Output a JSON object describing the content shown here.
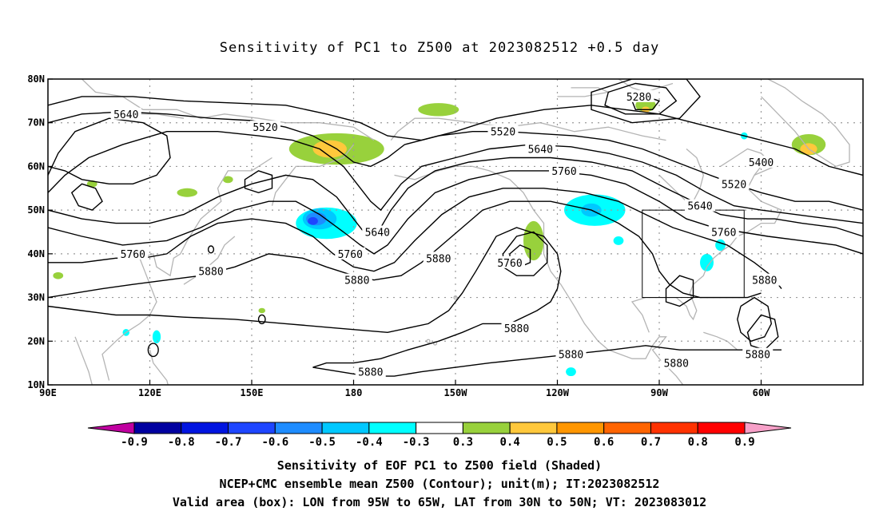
{
  "title": "Sensitivity of PC1 to Z500 at 2023082512 +0.5 day",
  "map": {
    "lat_labels": [
      "80N",
      "70N",
      "60N",
      "50N",
      "40N",
      "30N",
      "20N",
      "10N"
    ],
    "lon_labels": [
      "90E",
      "120E",
      "150E",
      "180",
      "150W",
      "120W",
      "90W",
      "60W"
    ],
    "valid_box": {
      "lon_from": -95,
      "lon_to": -65,
      "lat_from": 30,
      "lat_to": 50
    }
  },
  "contours": {
    "labels": [
      {
        "text": "5640",
        "lon": 113,
        "lat": 72
      },
      {
        "text": "5520",
        "lon": 154,
        "lat": 69
      },
      {
        "text": "5520",
        "lon": 224,
        "lat": 68
      },
      {
        "text": "5280",
        "lon": 264,
        "lat": 76
      },
      {
        "text": "5640",
        "lon": 235,
        "lat": 64
      },
      {
        "text": "5760",
        "lon": 242,
        "lat": 59
      },
      {
        "text": "5400",
        "lon": 300,
        "lat": 61
      },
      {
        "text": "5520",
        "lon": 292,
        "lat": 56
      },
      {
        "text": "5640",
        "lon": 282,
        "lat": 51
      },
      {
        "text": "5760",
        "lon": 289,
        "lat": 45
      },
      {
        "text": "5880",
        "lon": 301,
        "lat": 34
      },
      {
        "text": "5640",
        "lon": 187,
        "lat": 45
      },
      {
        "text": "5760",
        "lon": 179,
        "lat": 40
      },
      {
        "text": "5880",
        "lon": 181,
        "lat": 34
      },
      {
        "text": "5880",
        "lon": 205,
        "lat": 39
      },
      {
        "text": "5760",
        "lon": 226,
        "lat": 38
      },
      {
        "text": "5760",
        "lon": 115,
        "lat": 40
      },
      {
        "text": "5880",
        "lon": 138,
        "lat": 36
      },
      {
        "text": "5880",
        "lon": 228,
        "lat": 23
      },
      {
        "text": "5880",
        "lon": 244,
        "lat": 17
      },
      {
        "text": "5880",
        "lon": 275,
        "lat": 15
      },
      {
        "text": "5880",
        "lon": 299,
        "lat": 17
      },
      {
        "text": "5880",
        "lon": 185,
        "lat": 13
      }
    ],
    "color": "#000000"
  },
  "colorbar": {
    "labels": [
      "-0.9",
      "-0.8",
      "-0.7",
      "-0.6",
      "-0.5",
      "-0.4",
      "-0.3",
      "0.3",
      "0.4",
      "0.5",
      "0.6",
      "0.7",
      "0.8",
      "0.9"
    ],
    "low_arrow_color": "#c000a0",
    "high_arrow_color": "#f7a0c8",
    "colors": [
      "#0000a0",
      "#0014e0",
      "#1e46ff",
      "#1e8cff",
      "#00c8ff",
      "#00ffff",
      "#ffffff",
      "#98d13c",
      "#ffc83c",
      "#ff9600",
      "#ff6400",
      "#ff3200",
      "#ff0000"
    ]
  },
  "shading": [
    {
      "lon": 175,
      "lat": 64,
      "rx": 14,
      "ry": 3.6,
      "color": "#98d13c"
    },
    {
      "lon": 173,
      "lat": 64,
      "rx": 5,
      "ry": 2,
      "color": "#ffc83c"
    },
    {
      "lon": 172,
      "lat": 47,
      "rx": 9,
      "ry": 3.6,
      "color": "#00ffff"
    },
    {
      "lon": 170,
      "lat": 48,
      "rx": 5,
      "ry": 2.4,
      "color": "#00c8ff"
    },
    {
      "lon": 169,
      "lat": 48,
      "rx": 3,
      "ry": 1.5,
      "color": "#1e8cff"
    },
    {
      "lon": 168,
      "lat": 47.5,
      "rx": 1.5,
      "ry": 0.9,
      "color": "#1e46ff"
    },
    {
      "lon": 251,
      "lat": 50,
      "rx": 9,
      "ry": 3.6,
      "color": "#00ffff"
    },
    {
      "lon": 250,
      "lat": 50,
      "rx": 3,
      "ry": 1.5,
      "color": "#00c8ff"
    },
    {
      "lon": 233,
      "lat": 43,
      "rx": 3,
      "ry": 4.5,
      "color": "#98d13c"
    },
    {
      "lon": 205,
      "lat": 73,
      "rx": 6,
      "ry": 1.5,
      "color": "#98d13c"
    },
    {
      "lon": 266,
      "lat": 74,
      "rx": 3,
      "ry": 1.5,
      "color": "#98d13c"
    },
    {
      "lon": 266,
      "lat": 73,
      "rx": 1.2,
      "ry": 0.7,
      "color": "#ffc83c"
    },
    {
      "lon": 314,
      "lat": 65,
      "rx": 5,
      "ry": 2.4,
      "color": "#98d13c"
    },
    {
      "lon": 314,
      "lat": 64,
      "rx": 2.5,
      "ry": 1.3,
      "color": "#ffc83c"
    },
    {
      "lon": 284,
      "lat": 38,
      "rx": 2,
      "ry": 2,
      "color": "#00ffff"
    },
    {
      "lon": 288,
      "lat": 42,
      "rx": 1.5,
      "ry": 1.3,
      "color": "#00ffff"
    },
    {
      "lon": 103,
      "lat": 56,
      "rx": 1.5,
      "ry": 0.8,
      "color": "#98d13c"
    },
    {
      "lon": 122,
      "lat": 21,
      "rx": 1.2,
      "ry": 1.5,
      "color": "#00ffff"
    },
    {
      "lon": 113,
      "lat": 22,
      "rx": 1,
      "ry": 0.8,
      "color": "#00ffff"
    },
    {
      "lon": 131,
      "lat": 54,
      "rx": 3,
      "ry": 1,
      "color": "#98d13c"
    },
    {
      "lon": 143,
      "lat": 57,
      "rx": 1.5,
      "ry": 0.8,
      "color": "#98d13c"
    },
    {
      "lon": 244,
      "lat": 13,
      "rx": 1.5,
      "ry": 1,
      "color": "#00ffff"
    },
    {
      "lon": 258,
      "lat": 43,
      "rx": 1.5,
      "ry": 1,
      "color": "#00ffff"
    },
    {
      "lon": 295,
      "lat": 67,
      "rx": 1,
      "ry": 0.8,
      "color": "#00ffff"
    },
    {
      "lon": 93,
      "lat": 35,
      "rx": 1.5,
      "ry": 0.8,
      "color": "#98d13c"
    },
    {
      "lon": 153,
      "lat": 27,
      "rx": 1,
      "ry": 0.6,
      "color": "#98d13c"
    }
  ],
  "footer": {
    "line1": "Sensitivity of EOF PC1 to Z500 field (Shaded)",
    "line2": "NCEP+CMC ensemble mean Z500 (Contour); unit(m); IT:2023082512",
    "line3": "Valid area (box): LON from 95W to 65W, LAT from 30N to 50N; VT: 2023083012"
  }
}
